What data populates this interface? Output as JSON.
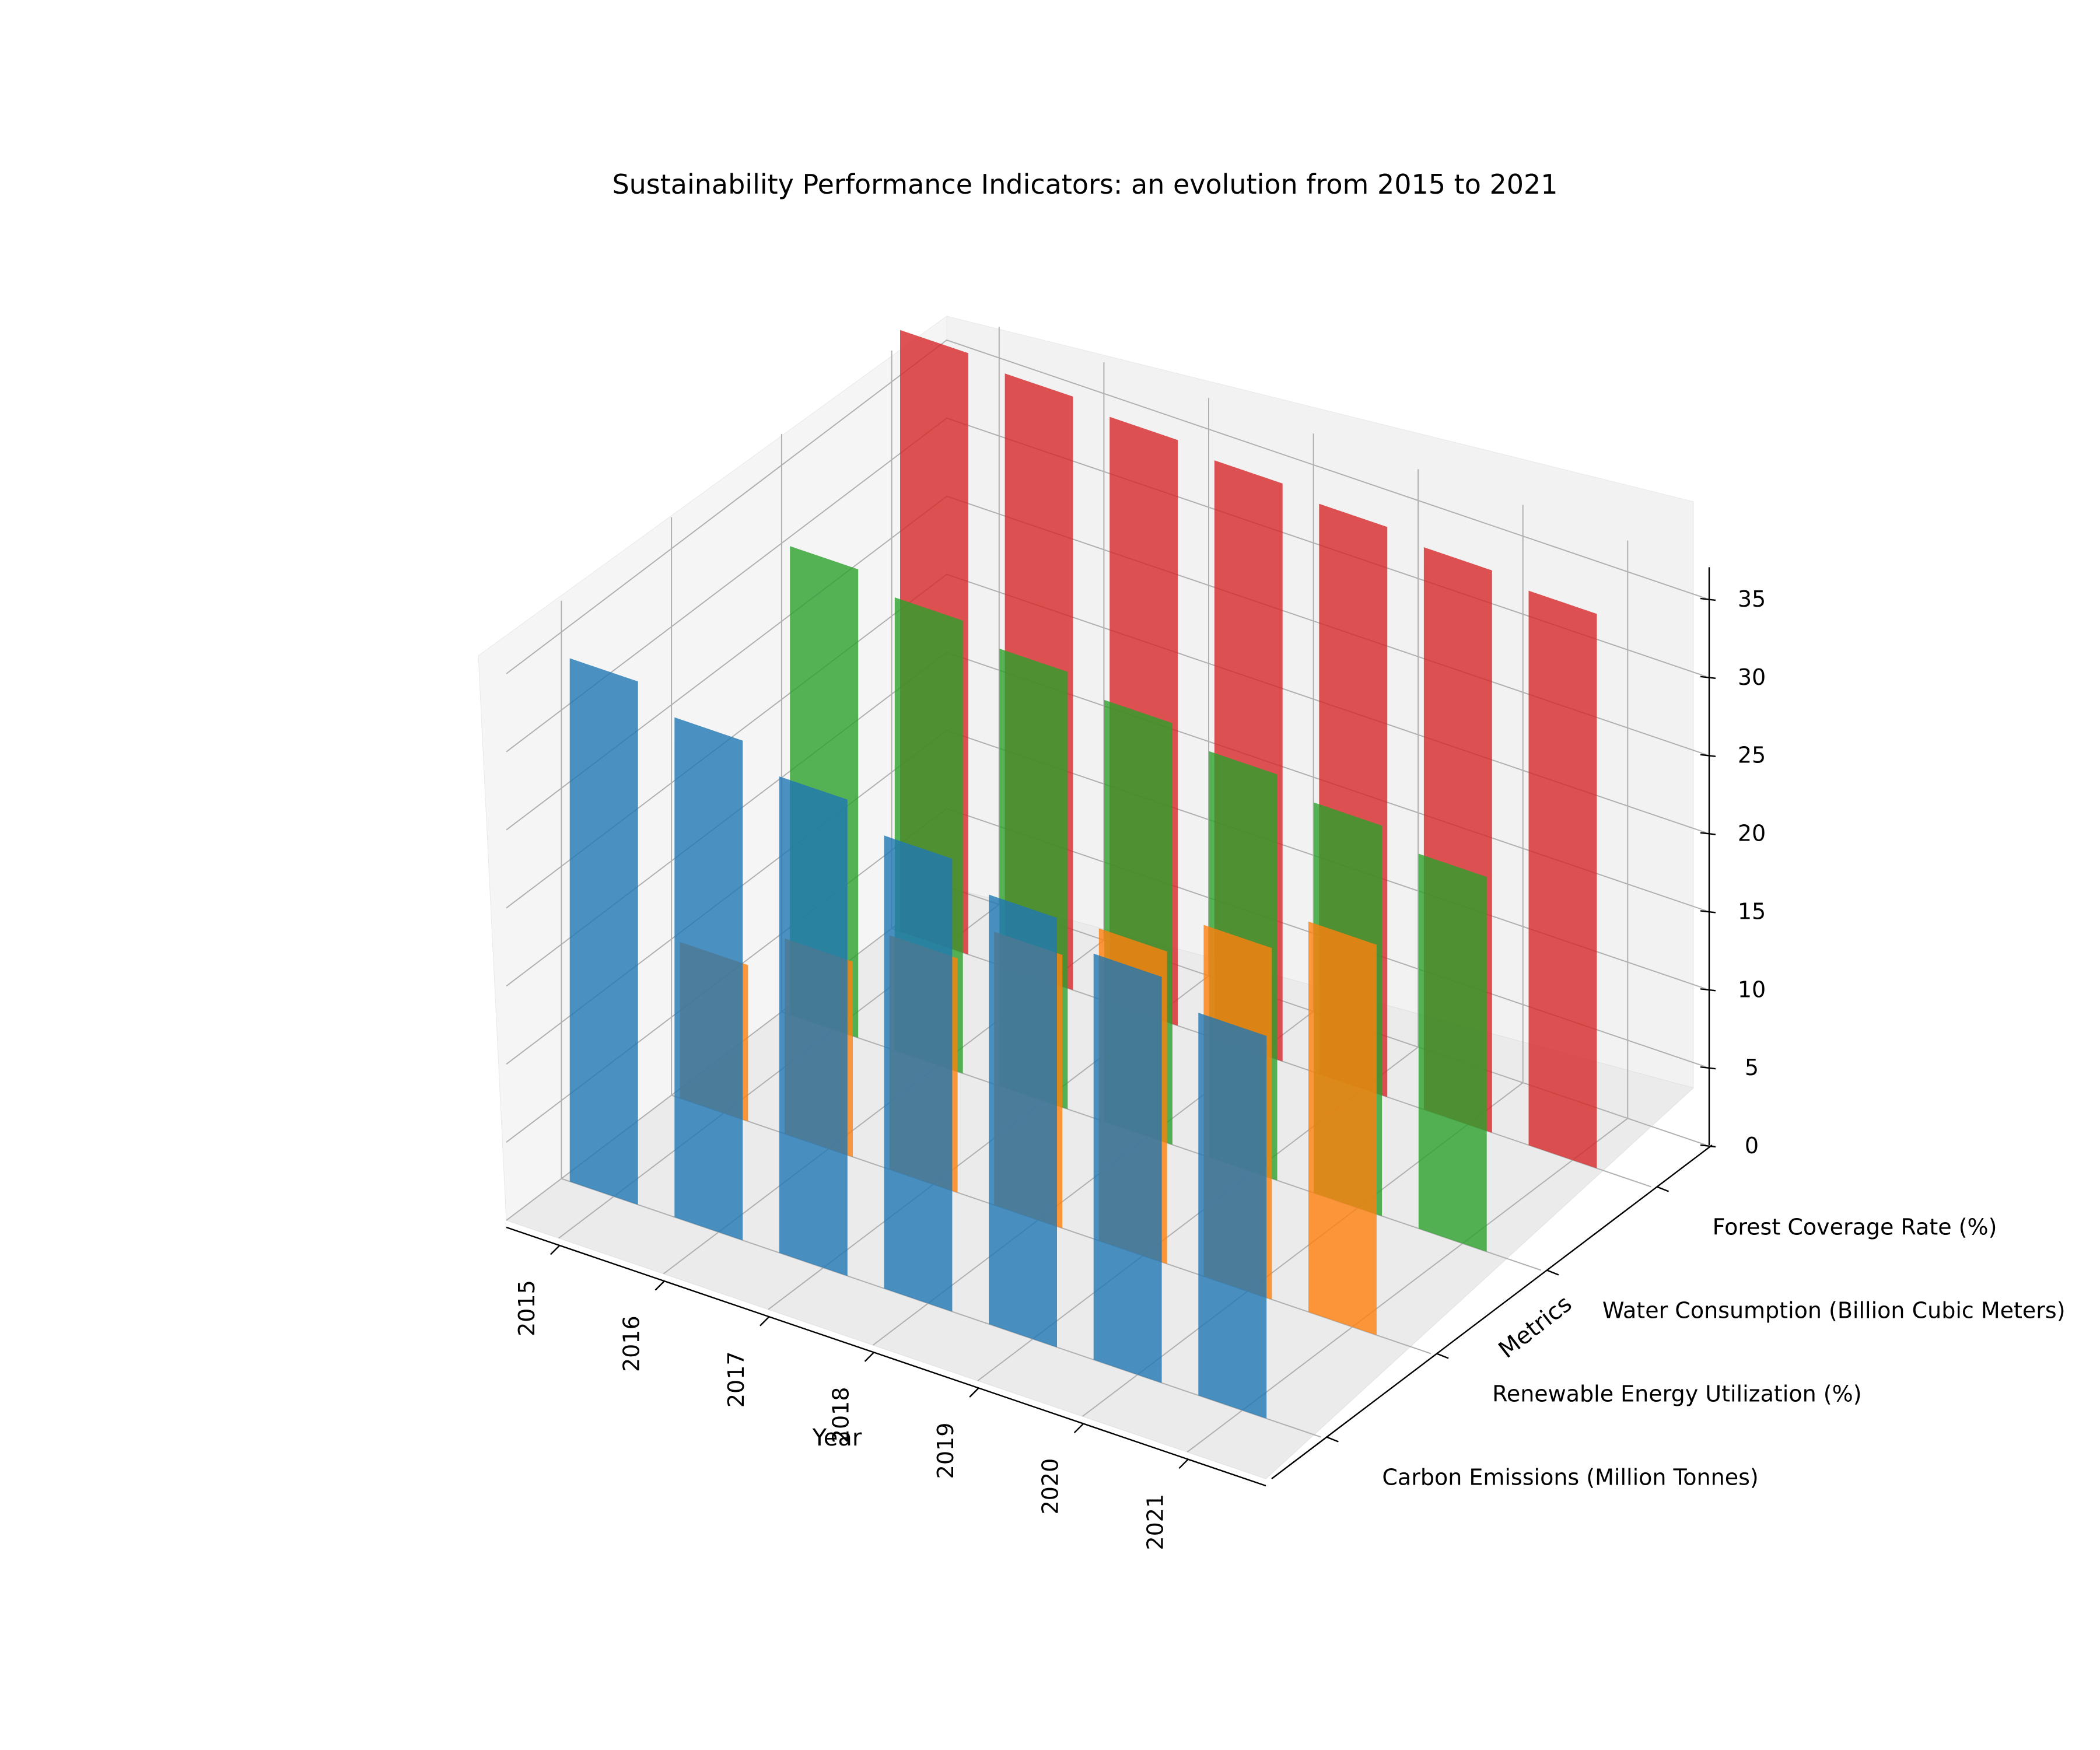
{
  "chart_data": {
    "type": "bar",
    "title": "Sustainability Performance Indicators: an evolution from 2015 to 2021",
    "xlabel": "Year",
    "ylabel": "Metrics",
    "categories": [
      "2015",
      "2016",
      "2017",
      "2018",
      "2019",
      "2020",
      "2021"
    ],
    "series_labels": [
      "Carbon Emissions (Million Tonnes)",
      "Renewable Energy Utilization (%)",
      "Water Consumption (Billion Cubic Meters)",
      "Forest Coverage Rate (%)"
    ],
    "series": [
      {
        "name": "Carbon Emissions (Million Tonnes)",
        "color": "#1f77b4",
        "values": [
          33.5,
          32.0,
          30.5,
          29.0,
          27.5,
          26.0,
          24.5
        ]
      },
      {
        "name": "Renewable Energy Utilization (%)",
        "color": "#ff7f0e",
        "values": [
          10.0,
          12.5,
          15.0,
          17.5,
          20.0,
          22.5,
          25.0
        ]
      },
      {
        "name": "Water Consumption (Billion Cubic Meters)",
        "color": "#2ca02c",
        "values": [
          30.0,
          29.0,
          28.0,
          27.0,
          26.0,
          25.0,
          24.0
        ]
      },
      {
        "name": "Forest Coverage Rate (%)",
        "color": "#d62728",
        "values": [
          38.5,
          38.0,
          37.5,
          37.0,
          36.5,
          36.0,
          35.5
        ]
      }
    ],
    "zticks": [
      "0",
      "5",
      "10",
      "15",
      "20",
      "25",
      "30",
      "35"
    ],
    "zlim": [
      0,
      37
    ],
    "grid": true,
    "legend": "none"
  }
}
